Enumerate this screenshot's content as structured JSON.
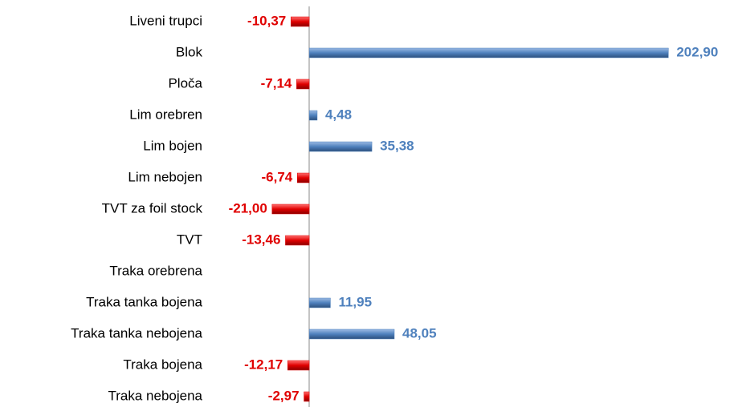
{
  "chart_data": {
    "type": "bar",
    "orientation": "horizontal",
    "categories": [
      "Liveni trupci",
      "Blok",
      "Ploča",
      "Lim orebren",
      "Lim bojen",
      "Lim nebojen",
      "TVT za foil stock",
      "TVT",
      "Traka orebrena",
      "Traka tanka bojena",
      "Traka tanka nebojena",
      "Traka bojena",
      "Traka nebojena"
    ],
    "values": [
      -10.37,
      202.9,
      -7.14,
      4.48,
      35.38,
      -6.74,
      -21.0,
      -13.46,
      null,
      11.95,
      48.05,
      -12.17,
      -2.97
    ],
    "value_labels": [
      "-10,37",
      "202,90",
      "-7,14",
      "4,48",
      "35,38",
      "-6,74",
      "-21,00",
      "-13,46",
      null,
      "11,95",
      "48,05",
      "-12,17",
      "-2,97"
    ],
    "colors": {
      "positive": "#4f81bd",
      "negative": "#e00000"
    },
    "xlim": [
      -25,
      215
    ]
  }
}
